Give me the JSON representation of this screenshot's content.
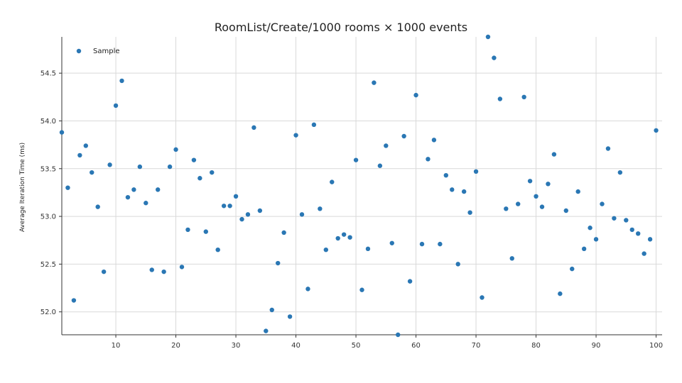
{
  "chart_data": {
    "type": "scatter",
    "title": "RoomList/Create/1000 rooms × 1000 events",
    "xlabel": "",
    "ylabel": "Average Iteration Time (ms)",
    "xlim": [
      1,
      101
    ],
    "ylim": [
      51.76,
      54.88
    ],
    "xticks": [
      10,
      20,
      30,
      40,
      50,
      60,
      70,
      80,
      90,
      100
    ],
    "yticks": [
      52.0,
      52.5,
      53.0,
      53.5,
      54.0,
      54.5
    ],
    "ytick_labels": [
      "52.0",
      "52.5",
      "53.0",
      "53.5",
      "54.0",
      "54.5"
    ],
    "grid": true,
    "legend_position": "top-left",
    "colors": {
      "point": "#2a77b4",
      "grid": "#d9d9d9",
      "axis": "#333333"
    },
    "series": [
      {
        "name": "Sample",
        "x": [
          1,
          2,
          3,
          4,
          5,
          6,
          7,
          8,
          9,
          10,
          11,
          12,
          13,
          14,
          15,
          16,
          17,
          18,
          19,
          20,
          21,
          22,
          23,
          24,
          25,
          26,
          27,
          28,
          29,
          30,
          31,
          32,
          33,
          34,
          35,
          36,
          37,
          38,
          39,
          40,
          41,
          42,
          43,
          44,
          45,
          46,
          47,
          48,
          49,
          50,
          51,
          52,
          53,
          54,
          55,
          56,
          57,
          58,
          59,
          60,
          61,
          62,
          63,
          64,
          65,
          66,
          67,
          68,
          69,
          70,
          71,
          72,
          73,
          74,
          75,
          76,
          77,
          78,
          79,
          80,
          81,
          82,
          83,
          84,
          85,
          86,
          87,
          88,
          89,
          90,
          91,
          92,
          93,
          94,
          95,
          96,
          97,
          98,
          99,
          100
        ],
        "y": [
          53.88,
          53.3,
          52.12,
          53.64,
          53.74,
          53.46,
          53.1,
          52.42,
          53.54,
          54.16,
          54.42,
          53.2,
          53.28,
          53.52,
          53.14,
          52.44,
          53.28,
          52.42,
          53.52,
          53.7,
          52.47,
          52.86,
          53.59,
          53.4,
          52.84,
          53.46,
          52.65,
          53.11,
          53.11,
          53.21,
          52.97,
          53.02,
          53.93,
          53.06,
          51.8,
          52.02,
          52.51,
          52.83,
          51.95,
          53.85,
          53.02,
          52.24,
          53.96,
          53.08,
          52.65,
          53.36,
          52.77,
          52.81,
          52.78,
          53.59,
          52.23,
          52.66,
          54.4,
          53.53,
          53.74,
          52.72,
          51.76,
          53.84,
          52.32,
          54.27,
          52.71,
          53.6,
          53.8,
          52.71,
          53.43,
          53.28,
          52.5,
          53.26,
          53.04,
          53.47,
          52.15,
          54.88,
          54.66,
          54.23,
          53.08,
          52.56,
          53.13,
          54.25,
          53.37,
          53.21,
          53.1,
          53.34,
          53.65,
          52.19,
          53.06,
          52.45,
          53.26,
          52.66,
          52.88,
          52.76,
          53.13,
          53.71,
          52.98,
          53.46,
          52.96,
          52.86,
          52.82,
          52.61,
          52.76,
          53.9
        ]
      }
    ]
  }
}
